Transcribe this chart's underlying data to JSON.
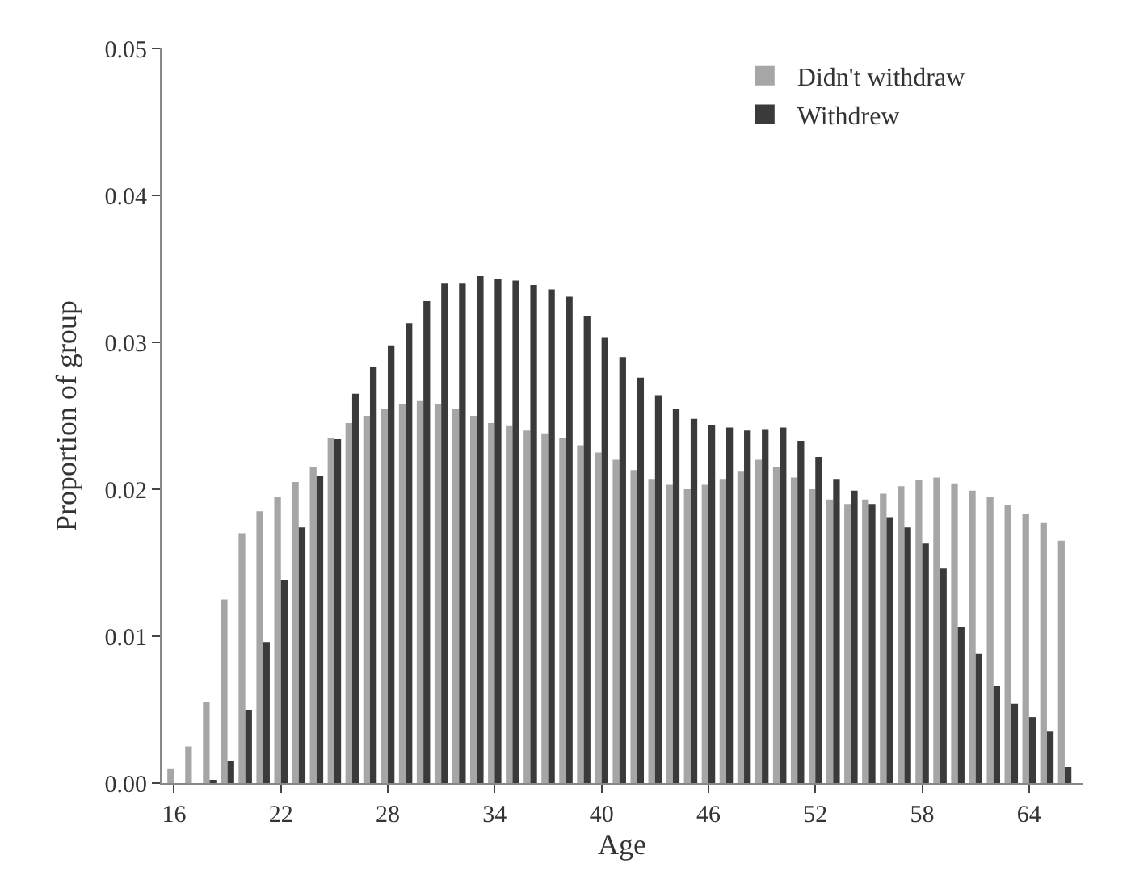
{
  "chart_data": {
    "type": "bar",
    "xlabel": "Age",
    "ylabel": "Proportion of group",
    "x": [
      16,
      17,
      18,
      19,
      20,
      21,
      22,
      23,
      24,
      25,
      26,
      27,
      28,
      29,
      30,
      31,
      32,
      33,
      34,
      35,
      36,
      37,
      38,
      39,
      40,
      41,
      42,
      43,
      44,
      45,
      46,
      47,
      48,
      49,
      50,
      51,
      52,
      53,
      54,
      55,
      56,
      57,
      58,
      59,
      60,
      61,
      62,
      63,
      64,
      65,
      66
    ],
    "series": [
      {
        "name": "Didn't withdraw",
        "color": "#a6a6a6",
        "values": [
          0.001,
          0.0025,
          0.0055,
          0.0125,
          0.017,
          0.0185,
          0.0195,
          0.0205,
          0.0215,
          0.0235,
          0.0245,
          0.025,
          0.0255,
          0.0258,
          0.026,
          0.0258,
          0.0255,
          0.025,
          0.0245,
          0.0243,
          0.024,
          0.0238,
          0.0235,
          0.023,
          0.0225,
          0.022,
          0.0213,
          0.0207,
          0.0203,
          0.02,
          0.0203,
          0.0207,
          0.0212,
          0.022,
          0.0215,
          0.0208,
          0.02,
          0.0193,
          0.019,
          0.0193,
          0.0197,
          0.0202,
          0.0206,
          0.0208,
          0.0204,
          0.0199,
          0.0195,
          0.0189,
          0.0183,
          0.0177,
          0.0165
        ]
      },
      {
        "name": "Withdrew",
        "color": "#3a3a3a",
        "values": [
          0,
          0,
          0.0002,
          0.0015,
          0.005,
          0.0096,
          0.0138,
          0.0174,
          0.0209,
          0.0234,
          0.0265,
          0.0283,
          0.0298,
          0.0313,
          0.0328,
          0.034,
          0.034,
          0.0345,
          0.0343,
          0.0342,
          0.0339,
          0.0336,
          0.0331,
          0.0318,
          0.0303,
          0.029,
          0.0276,
          0.0264,
          0.0255,
          0.0248,
          0.0244,
          0.0242,
          0.024,
          0.0241,
          0.0242,
          0.0233,
          0.0222,
          0.0207,
          0.0199,
          0.019,
          0.0181,
          0.0174,
          0.0163,
          0.0146,
          0.0106,
          0.0088,
          0.0066,
          0.0054,
          0.0045,
          0.0035,
          0.0011
        ]
      }
    ],
    "xlim": [
      15.3,
      67
    ],
    "xticks": [
      16,
      22,
      28,
      34,
      40,
      46,
      52,
      58,
      64
    ],
    "ylim": [
      0,
      0.05
    ],
    "yticks": [
      {
        "value": 0,
        "label": "0.00"
      },
      {
        "value": 0.01,
        "label": "0.01"
      },
      {
        "value": 0.02,
        "label": "0.02"
      },
      {
        "value": 0.03,
        "label": "0.03"
      },
      {
        "value": 0.04,
        "label": "0.04"
      },
      {
        "value": 0.05,
        "label": "0.05"
      }
    ],
    "legend": "top right"
  }
}
